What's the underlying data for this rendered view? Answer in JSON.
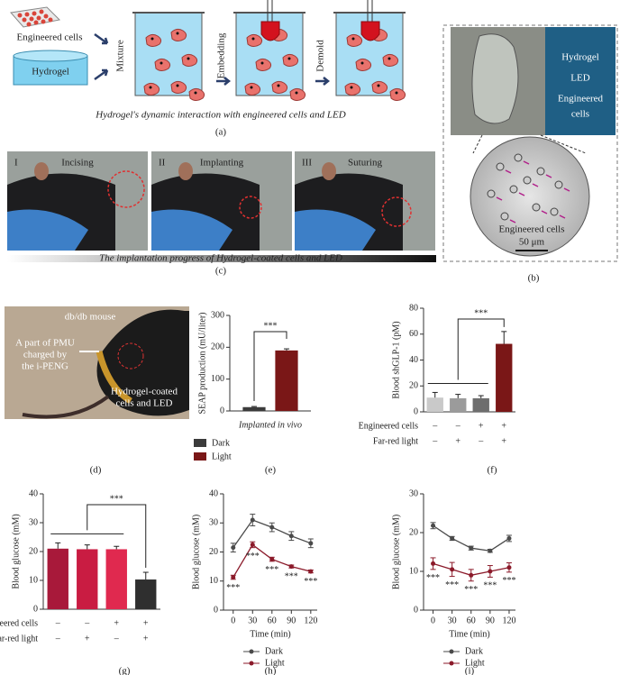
{
  "figure": {
    "panel_a": {
      "plate_label": "Engineered cells",
      "gel_label": "Hydrogel",
      "steps": [
        "Mixture",
        "Embedding",
        "Demold"
      ],
      "caption": "Hydrogel's dynamic interaction with engineered cells and LED",
      "label": "(a)"
    },
    "panel_b": {
      "tags": [
        "Hydrogel",
        "LED",
        "Engineered",
        "cells"
      ],
      "micro_label": "Engineered cells",
      "scale": "50 μm",
      "label": "(b)"
    },
    "panel_c": {
      "steps": [
        {
          "numeral": "I",
          "name": "Incising"
        },
        {
          "numeral": "II",
          "name": "Implanting"
        },
        {
          "numeral": "III",
          "name": "Suturing"
        }
      ],
      "caption": "The implantation progress of Hydrogel-coated cells and LED",
      "label": "(c)"
    },
    "panel_d": {
      "title": "db/db mouse",
      "pmu_label": [
        "A part of PMU",
        "charged by",
        "the i-PENG"
      ],
      "gel_label": [
        "Hydrogel-coated",
        "cells and LED"
      ],
      "label": "(d)"
    }
  },
  "chart_data": [
    {
      "type": "bar",
      "label": "(e)",
      "ylabel": "SEAP production (mU/liter)",
      "categories": [
        "Implanted in vivo"
      ],
      "series": [
        {
          "name": "Dark",
          "color": "#3b3b3b",
          "values": [
            12
          ],
          "errors": [
            2
          ]
        },
        {
          "name": "Light",
          "color": "#7a1717",
          "values": [
            190
          ],
          "errors": [
            5
          ]
        }
      ],
      "ylim": [
        0,
        300
      ],
      "yticks": [
        0,
        100,
        200,
        300
      ],
      "significance": "***"
    },
    {
      "type": "bar",
      "label": "(f)",
      "ylabel": "Blood shGLP-1 (pM)",
      "values": [
        11,
        10.5,
        10.5,
        52.5
      ],
      "errors": [
        4,
        3,
        2,
        9.5
      ],
      "colors": [
        "#c9c9c9",
        "#9b9b9b",
        "#6e6e6e",
        "#7a1717"
      ],
      "ylim": [
        0,
        80
      ],
      "yticks": [
        0,
        20,
        40,
        60,
        80
      ],
      "conditions": [
        {
          "name": "Engineered cells",
          "values": [
            "–",
            "–",
            "+",
            "+"
          ]
        },
        {
          "name": "Far-red light",
          "values": [
            "–",
            "+",
            "–",
            "+"
          ]
        }
      ],
      "significance": "***"
    },
    {
      "type": "bar",
      "label": "(g)",
      "ylabel": "Blood glucose (mM)",
      "values": [
        21,
        20.8,
        20.8,
        10.3
      ],
      "errors": [
        2,
        1.5,
        1,
        2.5
      ],
      "colors": [
        "#a8193a",
        "#c91c42",
        "#e0294f",
        "#2f2f2f"
      ],
      "ylim": [
        0,
        40
      ],
      "yticks": [
        0,
        10,
        20,
        30,
        40
      ],
      "conditions": [
        {
          "name": "Engineered cells",
          "values": [
            "–",
            "–",
            "+",
            "+"
          ]
        },
        {
          "name": "Far-red light",
          "values": [
            "–",
            "+",
            "–",
            "+"
          ]
        }
      ],
      "significance": "***"
    },
    {
      "type": "line",
      "label": "(h)",
      "xlabel": "Time (min)",
      "ylabel": "Blood glucose (mM)",
      "x": [
        0,
        30,
        60,
        90,
        120
      ],
      "series": [
        {
          "name": "Dark",
          "color": "#4a4a4a",
          "values": [
            21.5,
            31,
            28.5,
            25.5,
            23
          ],
          "errors": [
            1.5,
            2,
            1.5,
            1.5,
            1.5
          ]
        },
        {
          "name": "Light",
          "color": "#8b1a2a",
          "values": [
            11.3,
            22.5,
            17.5,
            15,
            13.3
          ],
          "errors": [
            0.7,
            1,
            0.7,
            0.5,
            0.5
          ]
        }
      ],
      "xlim": [
        -15,
        130
      ],
      "xticks": [
        0,
        30,
        60,
        90,
        120
      ],
      "ylim": [
        0,
        40
      ],
      "yticks": [
        0,
        10,
        20,
        30,
        40
      ],
      "annotations": [
        "***",
        "***",
        "***",
        "***",
        "***"
      ]
    },
    {
      "type": "line",
      "label": "(i)",
      "xlabel": "Time (min)",
      "ylabel": "Blood glucose (mM)",
      "x": [
        0,
        30,
        60,
        90,
        120
      ],
      "series": [
        {
          "name": "Dark",
          "color": "#4a4a4a",
          "values": [
            21.8,
            18.5,
            16,
            15.3,
            18.5
          ],
          "errors": [
            0.8,
            0.5,
            0.5,
            0.4,
            0.8
          ]
        },
        {
          "name": "Light",
          "color": "#8b1a2a",
          "values": [
            12,
            10.5,
            9,
            10,
            11
          ],
          "errors": [
            1.5,
            1.8,
            1.5,
            1.5,
            1.2
          ]
        }
      ],
      "xlim": [
        -15,
        130
      ],
      "xticks": [
        0,
        30,
        60,
        90,
        120
      ],
      "ylim": [
        0,
        30
      ],
      "yticks": [
        0,
        10,
        20,
        30
      ],
      "annotations": [
        "***",
        "***",
        "***",
        "***",
        "***"
      ]
    }
  ]
}
